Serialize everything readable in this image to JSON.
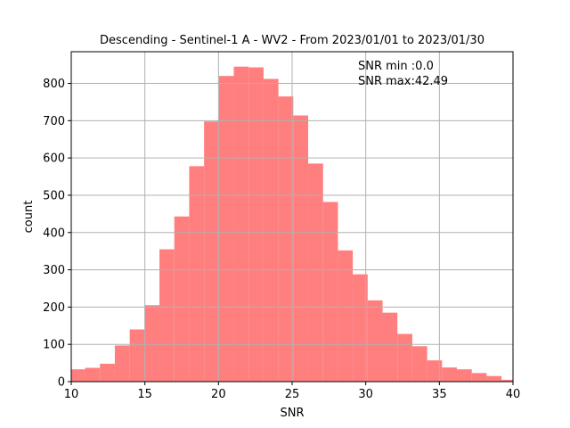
{
  "chart_data": {
    "type": "bar",
    "title": "Descending - Sentinel-1 A - WV2 - From 2023/01/01 to 2023/01/30",
    "xlabel": "SNR",
    "ylabel": "count",
    "xlim": [
      10,
      40
    ],
    "ylim": [
      0,
      885
    ],
    "xticks": [
      10,
      15,
      20,
      25,
      30,
      35,
      40
    ],
    "yticks": [
      0,
      100,
      200,
      300,
      400,
      500,
      600,
      700,
      800
    ],
    "grid": true,
    "bar_color": "#ff7f7f",
    "bin_edges": [
      9.93,
      10.94,
      11.95,
      12.96,
      13.97,
      14.98,
      15.99,
      17.0,
      18.01,
      19.02,
      20.03,
      21.04,
      22.05,
      23.06,
      24.07,
      25.08,
      26.09,
      27.1,
      28.11,
      29.12,
      30.13,
      31.14,
      32.15,
      33.16,
      34.17,
      35.18,
      36.19,
      37.2,
      38.21,
      39.22,
      40.23
    ],
    "values": [
      33,
      37,
      48,
      97,
      140,
      205,
      355,
      443,
      578,
      698,
      820,
      845,
      843,
      812,
      765,
      714,
      585,
      482,
      352,
      288,
      218,
      185,
      128,
      95,
      57,
      38,
      33,
      23,
      15,
      5
    ],
    "annotations": [
      "SNR min :0.0",
      "SNR max:42.49"
    ]
  }
}
